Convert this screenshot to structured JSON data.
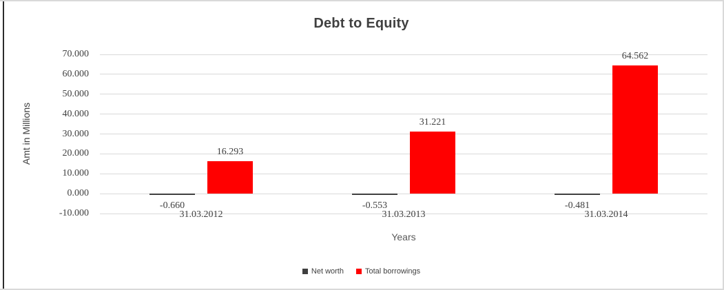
{
  "frame": {
    "background": "#ffffff",
    "outer_border_color": "#d9d9d9",
    "left_cell_border_color": "#2b2b2b"
  },
  "chart_data": {
    "type": "bar",
    "title": "Debt to Equity",
    "xlabel": "Years",
    "ylabel": "Amt in Millions",
    "categories": [
      "31.03.2012",
      "31.03.2013",
      "31.03.2014"
    ],
    "series": [
      {
        "name": "Net worth",
        "color": "#3f3f3f",
        "values": [
          -0.66,
          -0.553,
          -0.481
        ],
        "value_labels": [
          "-0.660",
          "-0.553",
          "-0.481"
        ]
      },
      {
        "name": "Total borrowings",
        "color": "#ff0000",
        "values": [
          16.293,
          31.221,
          64.562
        ],
        "value_labels": [
          "16.293",
          "31.221",
          "64.562"
        ]
      }
    ],
    "ylim": [
      -10,
      70
    ],
    "ytick_step": 10,
    "ytick_labels": [
      "70.000",
      "60.000",
      "50.000",
      "40.000",
      "30.000",
      "20.000",
      "10.000",
      "0.000",
      "-10.000"
    ],
    "grid": true,
    "gridline_color": "#d9d9d9",
    "legend_position": "bottom",
    "text_color": "#404040"
  }
}
